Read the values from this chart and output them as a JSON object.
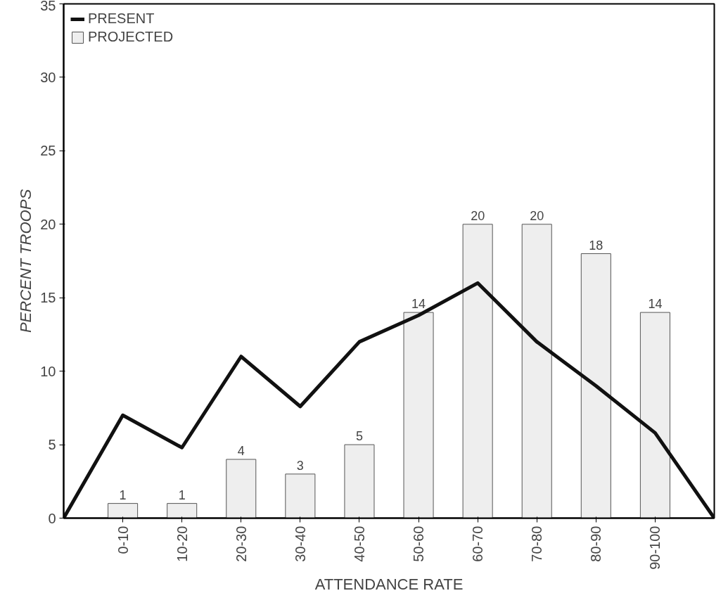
{
  "chart_data": {
    "type": "bar",
    "xlabel": "ATTENDANCE RATE",
    "ylabel": "PERCENT TROOPS",
    "categories": [
      null,
      "0-10",
      "10-20",
      "20-30",
      "30-40",
      "40-50",
      "50-60",
      "60-70",
      "70-80",
      "80-90",
      "90-100",
      null
    ],
    "ylim": [
      0,
      35
    ],
    "yticks": [
      0,
      5,
      10,
      15,
      20,
      25,
      30,
      35
    ],
    "grid": false,
    "legend": "top left",
    "series": [
      {
        "name": "PROJECTED",
        "color": "#eeeeee",
        "values": [
          null,
          1,
          1,
          4,
          3,
          5,
          14,
          20,
          20,
          18,
          14,
          null
        ],
        "value_labels": [
          null,
          "1",
          "1",
          "4",
          "3",
          "5",
          "14",
          "20",
          "20",
          "18",
          "14",
          null
        ]
      },
      {
        "name": "PRESENT",
        "type": "line",
        "color": "#111111",
        "values": [
          0,
          7,
          4.8,
          11,
          7.6,
          12,
          13.8,
          16,
          12,
          9,
          5.8,
          0
        ]
      }
    ]
  }
}
